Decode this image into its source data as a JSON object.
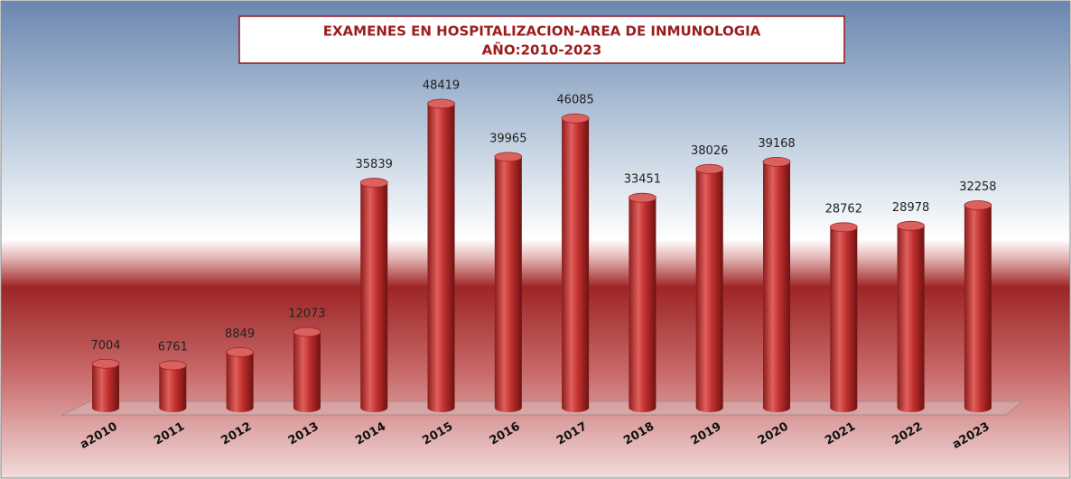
{
  "chart_data": {
    "type": "bar",
    "title": "EXAMENES EN HOSPITALIZACION-AREA DE INMUNOLOGIA",
    "subtitle": "AÑO:2010-2023",
    "categories": [
      "a2010",
      "2011",
      "2012",
      "2013",
      "2014",
      "2015",
      "2016",
      "2017",
      "2018",
      "2019",
      "2020",
      "2021",
      "2022",
      "a2023"
    ],
    "values": [
      7004,
      6761,
      8849,
      12073,
      35839,
      48419,
      39965,
      46085,
      33451,
      38026,
      39168,
      28762,
      28978,
      32258
    ],
    "color": "#c0302e"
  }
}
